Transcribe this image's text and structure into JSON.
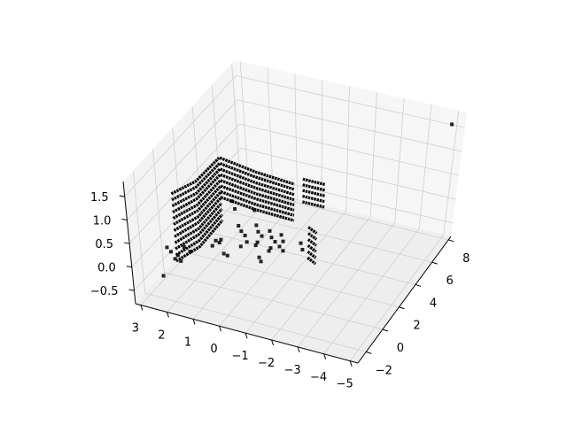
{
  "chart_data": {
    "type": "scatter3d",
    "title": "",
    "xlabel": "",
    "ylabel": "",
    "zlabel": "",
    "xlim": [
      -5.3,
      3.2
    ],
    "ylim": [
      -3,
      8.3
    ],
    "zlim": [
      -0.78,
      1.82
    ],
    "grid": true,
    "marker_color": "#000000",
    "pane_colors": {
      "floor": "#eeeeee",
      "left": "#f3f3f3",
      "back": "#f6f6f6"
    },
    "grid_color": "#cfcfcf",
    "xticks": [
      {
        "value": 3,
        "label": "3"
      },
      {
        "value": 2,
        "label": "2"
      },
      {
        "value": 1,
        "label": "1"
      },
      {
        "value": 0,
        "label": "0"
      },
      {
        "value": -1,
        "label": "−1"
      },
      {
        "value": -2,
        "label": "−2"
      },
      {
        "value": -3,
        "label": "−3"
      },
      {
        "value": -4,
        "label": "−4"
      },
      {
        "value": -5,
        "label": "−5"
      }
    ],
    "yticks": [
      {
        "value": -2,
        "label": "−2"
      },
      {
        "value": 0,
        "label": "0"
      },
      {
        "value": 2,
        "label": "2"
      },
      {
        "value": 4,
        "label": "4"
      },
      {
        "value": 6,
        "label": "6"
      },
      {
        "value": 8,
        "label": "8"
      }
    ],
    "zticks": [
      {
        "value": -0.5,
        "label": "−0.5"
      },
      {
        "value": 0,
        "label": "0.0"
      },
      {
        "value": 0.5,
        "label": "0.5"
      },
      {
        "value": 1.0,
        "label": "1.0"
      },
      {
        "value": 1.5,
        "label": "1.5"
      }
    ],
    "scan_lines": [
      [
        [
          2.2,
          -1.2,
          1.3
        ],
        [
          1.85,
          0.3,
          1.27
        ],
        [
          1.5,
          1.8,
          1.48
        ],
        [
          0.2,
          1.8,
          1.36
        ],
        [
          -1.2,
          1.8,
          1.3
        ]
      ],
      [
        [
          2.2,
          -1.2,
          1.17
        ],
        [
          1.85,
          0.3,
          1.15
        ],
        [
          1.5,
          1.8,
          1.36
        ],
        [
          0.2,
          1.8,
          1.25
        ],
        [
          -1.2,
          1.8,
          1.19
        ]
      ],
      [
        [
          2.2,
          -1.2,
          1.04
        ],
        [
          1.85,
          0.3,
          1.02
        ],
        [
          1.5,
          1.8,
          1.24
        ],
        [
          0.2,
          1.8,
          1.13
        ],
        [
          -1.2,
          1.8,
          1.08
        ]
      ],
      [
        [
          2.2,
          -1.2,
          0.91
        ],
        [
          1.85,
          0.3,
          0.9
        ],
        [
          1.5,
          1.8,
          1.12
        ],
        [
          0.2,
          1.8,
          1.02
        ],
        [
          -1.2,
          1.8,
          0.97
        ]
      ],
      [
        [
          2.2,
          -1.2,
          0.78
        ],
        [
          1.85,
          0.3,
          0.77
        ],
        [
          1.5,
          1.8,
          1.0
        ],
        [
          0.2,
          1.8,
          0.9
        ],
        [
          -1.2,
          1.8,
          0.86
        ]
      ],
      [
        [
          2.2,
          -1.2,
          0.65
        ],
        [
          1.85,
          0.3,
          0.65
        ],
        [
          1.5,
          1.8,
          0.88
        ],
        [
          0.2,
          1.8,
          0.79
        ],
        [
          -1.2,
          1.8,
          0.75
        ]
      ],
      [
        [
          2.2,
          -1.2,
          0.52
        ],
        [
          1.85,
          0.3,
          0.52
        ],
        [
          1.5,
          1.8,
          0.76
        ],
        [
          0.2,
          1.8,
          0.67
        ],
        [
          -1.2,
          1.8,
          0.64
        ]
      ],
      [
        [
          2.2,
          -1.2,
          0.39
        ],
        [
          1.85,
          0.3,
          0.4
        ],
        [
          1.5,
          1.8,
          0.64
        ],
        [
          0.2,
          1.8,
          0.56
        ],
        [
          -1.2,
          1.8,
          0.53
        ]
      ],
      [
        [
          2.2,
          -1.2,
          0.26
        ],
        [
          1.85,
          0.3,
          0.27
        ],
        [
          1.5,
          1.8,
          0.52
        ]
      ],
      [
        [
          2.2,
          -1.2,
          0.13
        ],
        [
          1.85,
          0.3,
          0.15
        ],
        [
          1.5,
          1.8,
          0.4
        ]
      ],
      [
        [
          2.2,
          -1.2,
          0.0
        ],
        [
          1.85,
          0.3,
          0.02
        ],
        [
          1.5,
          1.8,
          0.28
        ]
      ],
      [
        [
          2.2,
          -1.2,
          -0.13
        ],
        [
          1.85,
          0.3,
          -0.11
        ],
        [
          1.5,
          1.8,
          0.16
        ]
      ],
      [
        [
          -1.5,
          1.8,
          1.45
        ],
        [
          -2.3,
          1.8,
          1.45
        ]
      ],
      [
        [
          -1.5,
          1.8,
          1.33
        ],
        [
          -2.3,
          1.8,
          1.33
        ]
      ],
      [
        [
          -1.5,
          1.8,
          1.21
        ],
        [
          -2.3,
          1.8,
          1.21
        ]
      ],
      [
        [
          -1.5,
          1.8,
          1.09
        ],
        [
          -2.3,
          1.8,
          1.09
        ]
      ],
      [
        [
          -1.5,
          1.8,
          0.97
        ],
        [
          -2.3,
          1.8,
          0.97
        ]
      ],
      [
        [
          -2.0,
          1.0,
          0.69
        ],
        [
          -2.4,
          0.7,
          0.69
        ]
      ],
      [
        [
          -2.0,
          1.0,
          0.56
        ],
        [
          -2.4,
          0.7,
          0.56
        ]
      ],
      [
        [
          -2.0,
          1.0,
          0.43
        ],
        [
          -2.4,
          0.7,
          0.43
        ]
      ],
      [
        [
          -2.0,
          1.0,
          0.3
        ],
        [
          -2.4,
          0.7,
          0.3
        ]
      ],
      [
        [
          -2.0,
          1.0,
          0.17
        ],
        [
          -2.4,
          0.7,
          0.17
        ]
      ],
      [
        [
          -2.0,
          1.0,
          0.04
        ],
        [
          -2.4,
          0.7,
          0.04
        ]
      ]
    ],
    "points": [
      [
        0.6,
        1.0,
        0.35
      ],
      [
        0.5,
        1.0,
        0.25
      ],
      [
        0.4,
        1.1,
        0.15
      ],
      [
        0.3,
        1.0,
        0.05
      ],
      [
        0.5,
        0.9,
        -0.05
      ],
      [
        0.0,
        1.2,
        0.4
      ],
      [
        -0.1,
        1.1,
        0.3
      ],
      [
        -0.2,
        1.2,
        0.2
      ],
      [
        -0.1,
        1.0,
        0.1
      ],
      [
        0.0,
        1.1,
        0.0
      ],
      [
        -0.5,
        1.2,
        0.35
      ],
      [
        -0.6,
        1.1,
        0.25
      ],
      [
        -0.7,
        1.2,
        0.15
      ],
      [
        -0.6,
        1.0,
        0.05
      ],
      [
        -0.5,
        1.1,
        -0.05
      ],
      [
        -0.9,
        1.3,
        0.3
      ],
      [
        -1.0,
        1.2,
        0.2
      ],
      [
        -0.9,
        1.1,
        0.1
      ],
      [
        -1.0,
        1.2,
        0.0
      ],
      [
        1.3,
        0.5,
        0.05
      ],
      [
        1.2,
        0.6,
        0.0
      ],
      [
        1.4,
        0.4,
        -0.05
      ],
      [
        1.1,
        0.5,
        0.1
      ],
      [
        0.9,
        0.2,
        -0.1
      ],
      [
        0.8,
        0.3,
        -0.15
      ],
      [
        -0.3,
        0.6,
        -0.1
      ],
      [
        -0.4,
        0.5,
        -0.15
      ],
      [
        2.4,
        -1.5,
        0.2
      ],
      [
        2.3,
        -1.4,
        0.1
      ],
      [
        2.2,
        -1.0,
        -0.05
      ],
      [
        2.4,
        -0.8,
        -0.2
      ],
      [
        2.3,
        -0.5,
        -0.3
      ],
      [
        2.5,
        -1.8,
        -0.35
      ],
      [
        2.1,
        -0.6,
        0.05
      ],
      [
        2.0,
        -0.3,
        -0.1
      ],
      [
        1.0,
        1.5,
        0.7
      ],
      [
        0.9,
        1.5,
        0.55
      ],
      [
        0.2,
        1.6,
        0.6
      ],
      [
        -1.6,
        1.4,
        0.2
      ],
      [
        -1.7,
        1.3,
        0.1
      ],
      [
        -5.0,
        7.6,
        1.7
      ]
    ]
  }
}
